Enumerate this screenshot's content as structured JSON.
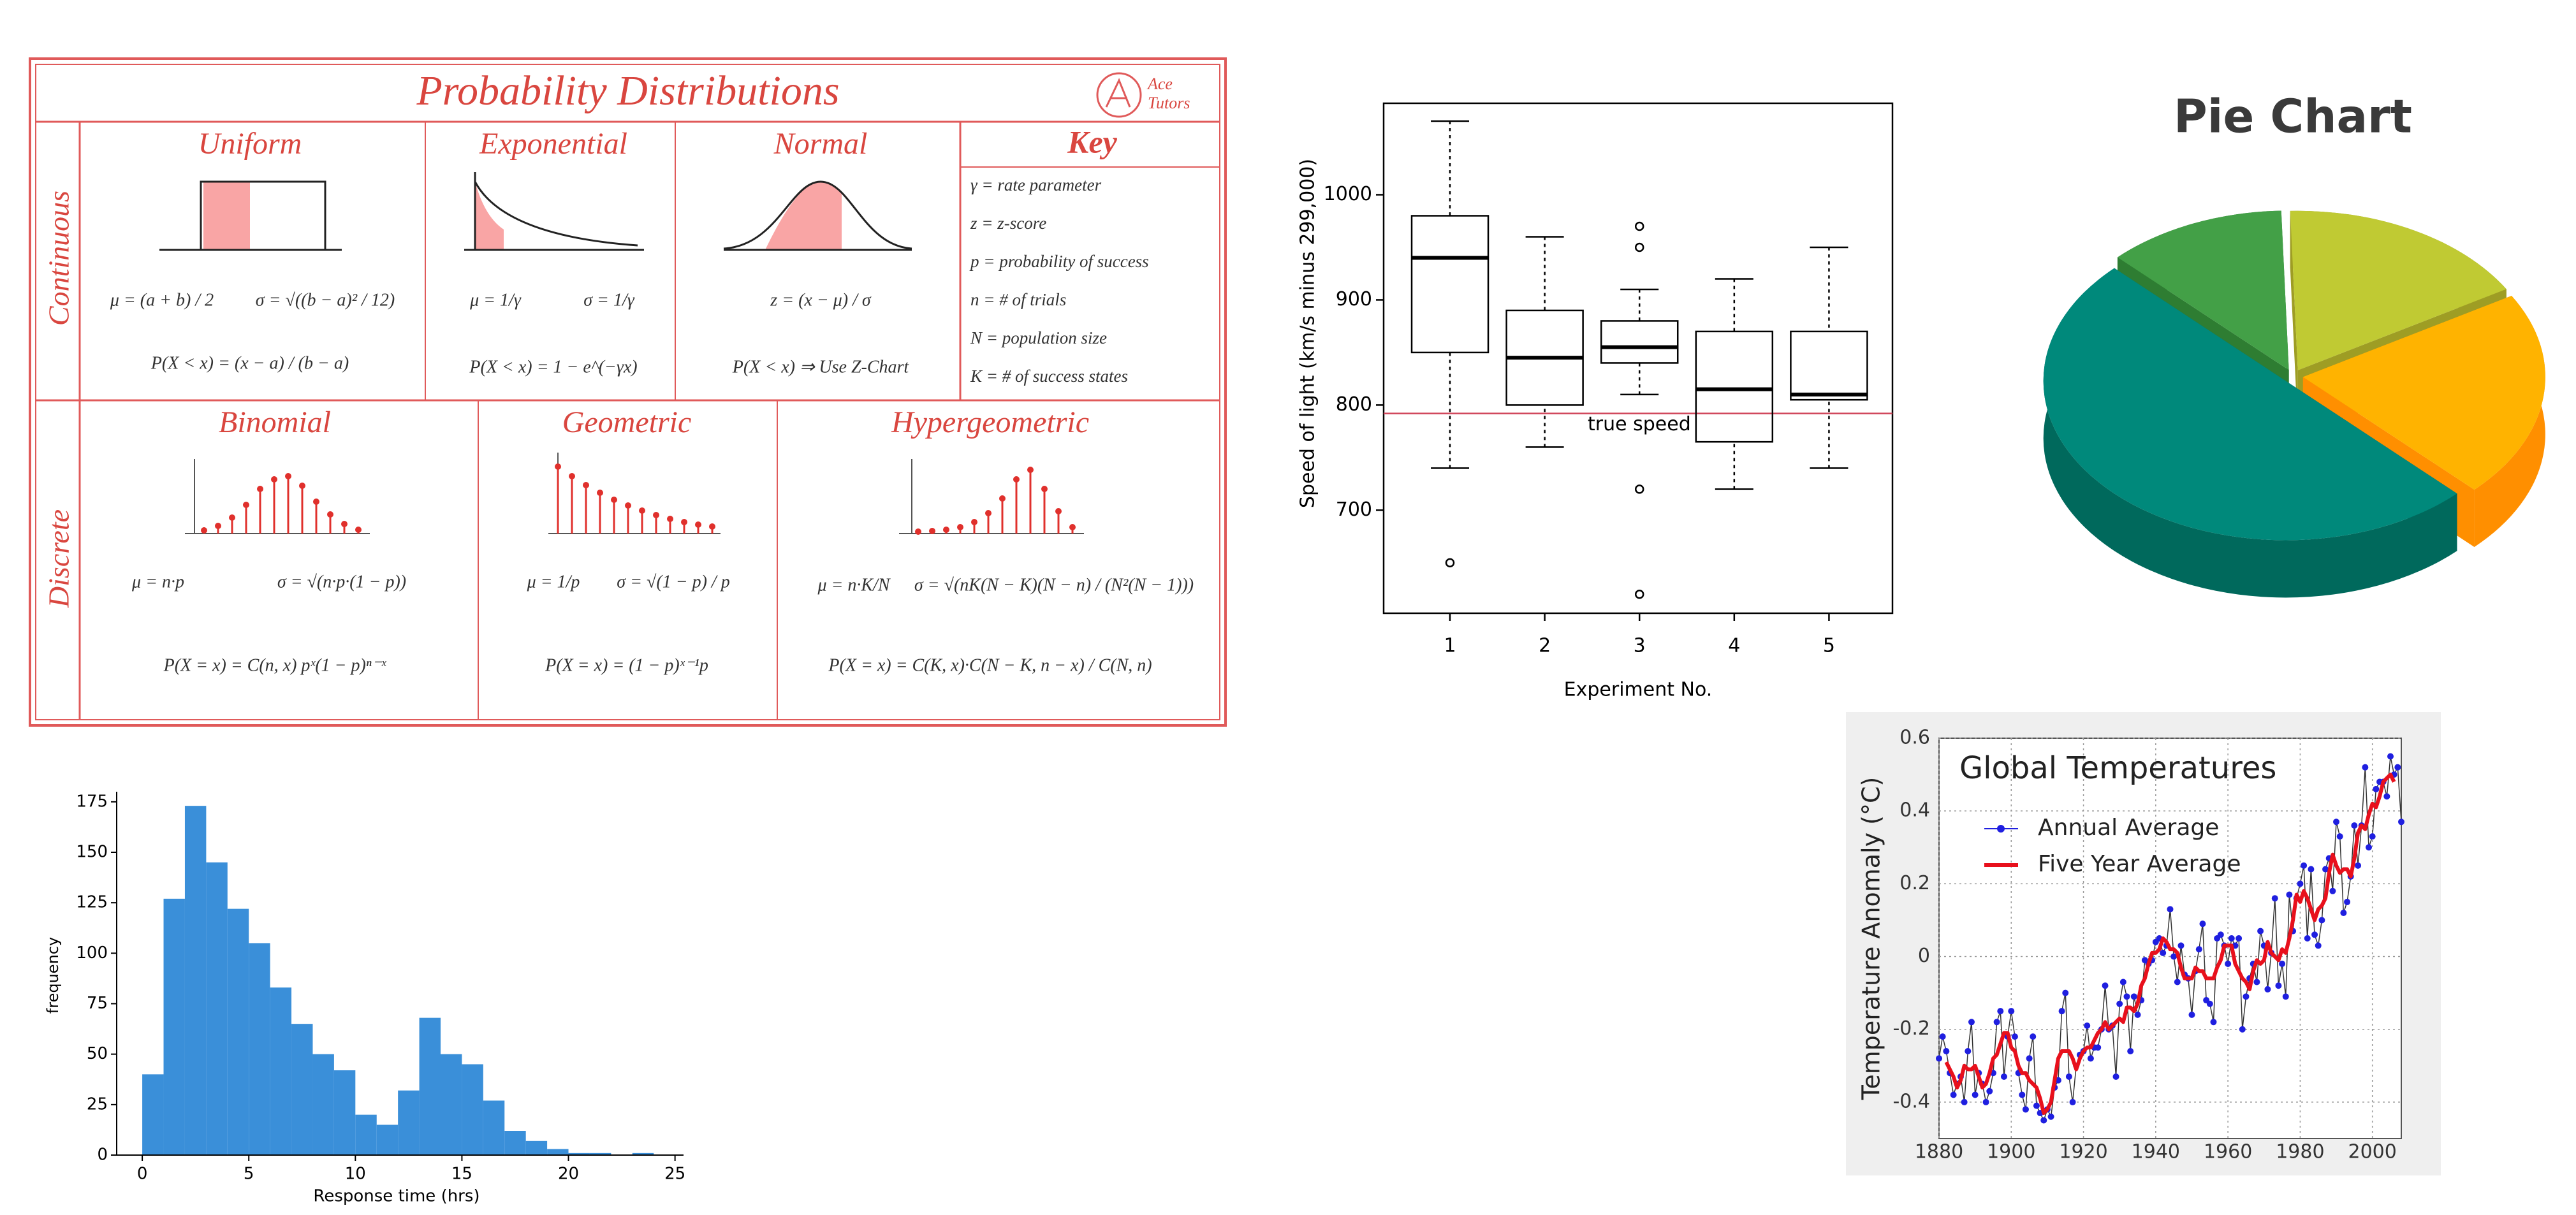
{
  "probability_sheet": {
    "title": "Probability Distributions",
    "brand": [
      "Ace",
      "Tutors"
    ],
    "sections": [
      "Continuous",
      "Discrete"
    ],
    "distributions": [
      {
        "name": "Uniform",
        "formulas": [
          "μ = (a + b) / 2",
          "σ = √((b − a)² / 12)",
          "P(X < x) = (x − a) / (b − a)"
        ]
      },
      {
        "name": "Exponential",
        "formulas": [
          "μ = 1/γ",
          "σ = 1/γ",
          "P(X < x) = 1 − e^(−γx)"
        ]
      },
      {
        "name": "Normal",
        "formulas": [
          "z = (x − μ) / σ",
          "P(X < x) ⇒ Use Z-Chart"
        ]
      },
      {
        "name": "Binomial",
        "formulas": [
          "μ = n·p",
          "σ = √(n·p·(1 − p))",
          "P(X = x) = C(n, x) pˣ(1 − p)ⁿ⁻ˣ"
        ]
      },
      {
        "name": "Geometric",
        "formulas": [
          "μ = 1/p",
          "σ = √(1 − p) / p",
          "P(X = x) = (1 − p)ˣ⁻¹p"
        ]
      },
      {
        "name": "Hypergeometric",
        "formulas": [
          "μ = n·K/N",
          "σ = √(nK(N − K)(N − n) / (N²(N − 1)))",
          "P(X = x) = C(K, x)·C(N − K, n − x) / C(N, n)"
        ]
      }
    ],
    "key": {
      "title": "Key",
      "items": [
        "γ = rate parameter",
        "z = z-score",
        "p = probability of success",
        "n = # of trials",
        "N = population size",
        "K = # of success states"
      ]
    }
  },
  "chart_data": [
    {
      "type": "box",
      "x_label": "Experiment No.",
      "y_label": "Speed of light (km/s minus 299,000)",
      "x": [
        1,
        2,
        3,
        4,
        5
      ],
      "xlim": [
        0.3,
        5.67
      ],
      "xticks": [
        1,
        2,
        3,
        4,
        5
      ],
      "ylim": [
        602,
        1087
      ],
      "yticks": [
        700,
        800,
        900,
        1000
      ],
      "boxes": [
        {
          "whisker_low": 740,
          "q1": 850,
          "median": 940,
          "q3": 980,
          "whisker_high": 1070,
          "outliers": [
            650
          ]
        },
        {
          "whisker_low": 760,
          "q1": 800,
          "median": 845,
          "q3": 890,
          "whisker_high": 960,
          "outliers": []
        },
        {
          "whisker_low": 810,
          "q1": 840,
          "median": 855,
          "q3": 880,
          "whisker_high": 910,
          "outliers": [
            620,
            720,
            950,
            970
          ]
        },
        {
          "whisker_low": 720,
          "q1": 765,
          "median": 815,
          "q3": 870,
          "whisker_high": 920,
          "outliers": []
        },
        {
          "whisker_low": 740,
          "q1": 805,
          "median": 810,
          "q3": 870,
          "whisker_high": 950,
          "outliers": []
        }
      ],
      "reference_line": {
        "value": 792,
        "label": "true speed",
        "color": "#d0455a"
      }
    },
    {
      "type": "pie",
      "title": "Pie Chart",
      "values": [
        12,
        17,
        21,
        50
      ],
      "colors": [
        "#43a047",
        "#c0ca33",
        "#ffb300",
        "#00897b"
      ],
      "side_colors": [
        "#2e7d32",
        "#9e9d24",
        "#ff8f00",
        "#00695c"
      ]
    },
    {
      "type": "histogram",
      "x_label": "Response time (hrs)",
      "y_label": "frequency",
      "bins": [
        0,
        1,
        2,
        3,
        4,
        5,
        6,
        7,
        8,
        9,
        10,
        11,
        12,
        13,
        14,
        15,
        16,
        17,
        18,
        19,
        20,
        21,
        22,
        23,
        24,
        25
      ],
      "counts": [
        40,
        127,
        173,
        145,
        122,
        105,
        83,
        65,
        50,
        42,
        20,
        15,
        32,
        68,
        50,
        45,
        27,
        12,
        7,
        3,
        1,
        1,
        0,
        1,
        0
      ],
      "color": "#3a8fd9",
      "xlim": [
        -1.2,
        25.4
      ],
      "xticks": [
        0,
        5,
        10,
        15,
        20,
        25
      ],
      "ylim": [
        0,
        180
      ],
      "yticks": [
        0,
        25,
        50,
        75,
        100,
        125,
        150,
        175
      ]
    },
    {
      "type": "line",
      "title": "Global Temperatures",
      "y_label": "Temperature Anomaly (°C)",
      "grid": true,
      "x": [
        1880,
        1881,
        1882,
        1883,
        1884,
        1885,
        1886,
        1887,
        1888,
        1889,
        1890,
        1891,
        1892,
        1893,
        1894,
        1895,
        1896,
        1897,
        1898,
        1899,
        1900,
        1901,
        1902,
        1903,
        1904,
        1905,
        1906,
        1907,
        1908,
        1909,
        1910,
        1911,
        1912,
        1913,
        1914,
        1915,
        1916,
        1917,
        1918,
        1919,
        1920,
        1921,
        1922,
        1923,
        1924,
        1925,
        1926,
        1927,
        1928,
        1929,
        1930,
        1931,
        1932,
        1933,
        1934,
        1935,
        1936,
        1937,
        1938,
        1939,
        1940,
        1941,
        1942,
        1943,
        1944,
        1945,
        1946,
        1947,
        1948,
        1949,
        1950,
        1951,
        1952,
        1953,
        1954,
        1955,
        1956,
        1957,
        1958,
        1959,
        1960,
        1961,
        1962,
        1963,
        1964,
        1965,
        1966,
        1967,
        1968,
        1969,
        1970,
        1971,
        1972,
        1973,
        1974,
        1975,
        1976,
        1977,
        1978,
        1979,
        1980,
        1981,
        1982,
        1983,
        1984,
        1985,
        1986,
        1987,
        1988,
        1989,
        1990,
        1991,
        1992,
        1993,
        1994,
        1995,
        1996,
        1997,
        1998,
        1999,
        2000,
        2001,
        2002,
        2003,
        2004,
        2005,
        2006,
        2007,
        2008
      ],
      "xlim": [
        1880,
        2008
      ],
      "xticks": [
        1880,
        1900,
        1920,
        1940,
        1960,
        1980,
        2000
      ],
      "ylim": [
        -0.5,
        0.6
      ],
      "yticks": [
        -0.4,
        -0.2,
        0,
        0.2,
        0.4,
        0.6
      ],
      "series": [
        {
          "name": "Annual Average",
          "color": "#1f1fe0",
          "marker": true,
          "values": [
            -0.28,
            -0.22,
            -0.26,
            -0.32,
            -0.38,
            -0.35,
            -0.33,
            -0.4,
            -0.26,
            -0.18,
            -0.38,
            -0.32,
            -0.35,
            -0.4,
            -0.37,
            -0.32,
            -0.18,
            -0.15,
            -0.33,
            -0.22,
            -0.15,
            -0.22,
            -0.32,
            -0.38,
            -0.42,
            -0.28,
            -0.22,
            -0.41,
            -0.43,
            -0.45,
            -0.42,
            -0.44,
            -0.36,
            -0.34,
            -0.15,
            -0.1,
            -0.33,
            -0.4,
            -0.3,
            -0.27,
            -0.26,
            -0.19,
            -0.28,
            -0.25,
            -0.25,
            -0.2,
            -0.08,
            -0.2,
            -0.19,
            -0.33,
            -0.13,
            -0.07,
            -0.11,
            -0.26,
            -0.11,
            -0.16,
            -0.12,
            -0.01,
            -0.02,
            -0.01,
            0.04,
            0.05,
            0.01,
            0.03,
            0.13,
            0,
            -0.07,
            0.03,
            -0.05,
            -0.06,
            -0.16,
            -0.04,
            0.02,
            0.09,
            -0.12,
            -0.13,
            -0.18,
            0.05,
            0.06,
            0.03,
            -0.02,
            0.05,
            0.03,
            0.05,
            -0.2,
            -0.11,
            -0.06,
            -0.02,
            -0.07,
            0.07,
            0.03,
            -0.09,
            0.01,
            0.16,
            -0.08,
            -0.02,
            -0.11,
            0.17,
            0.07,
            0.16,
            0.2,
            0.25,
            0.05,
            0.24,
            0.06,
            0.03,
            0.1,
            0.24,
            0.27,
            0.18,
            0.37,
            0.33,
            0.12,
            0.15,
            0.22,
            0.36,
            0.25,
            0.36,
            0.52,
            0.3,
            0.33,
            0.46,
            0.48,
            0.48,
            0.44,
            0.55,
            0.5,
            0.52,
            0.37
          ]
        },
        {
          "name": "Five Year Average",
          "color": "#e8101c",
          "marker": false,
          "values": [
            null,
            null,
            -0.29,
            -0.31,
            -0.33,
            -0.36,
            -0.34,
            -0.3,
            -0.31,
            -0.31,
            -0.3,
            -0.33,
            -0.36,
            -0.35,
            -0.32,
            -0.28,
            -0.27,
            -0.24,
            -0.21,
            -0.21,
            -0.25,
            -0.26,
            -0.3,
            -0.32,
            -0.32,
            -0.34,
            -0.35,
            -0.36,
            -0.39,
            -0.43,
            -0.42,
            -0.4,
            -0.34,
            -0.28,
            -0.26,
            -0.26,
            -0.26,
            -0.28,
            -0.31,
            -0.28,
            -0.26,
            -0.25,
            -0.25,
            -0.23,
            -0.21,
            -0.2,
            -0.18,
            -0.2,
            -0.19,
            -0.18,
            -0.17,
            -0.18,
            -0.14,
            -0.14,
            -0.15,
            -0.13,
            -0.08,
            -0.06,
            -0.02,
            0.01,
            0.01,
            0.02,
            0.05,
            0.04,
            0.02,
            0.02,
            0.01,
            -0.03,
            -0.06,
            -0.06,
            -0.06,
            -0.03,
            -0.04,
            -0.04,
            -0.06,
            -0.06,
            -0.06,
            -0.03,
            -0.01,
            0.03,
            0.03,
            0.03,
            -0.02,
            -0.04,
            -0.06,
            -0.07,
            -0.09,
            -0.04,
            -0.01,
            -0.02,
            -0.01,
            0.04,
            0.01,
            0,
            -0.01,
            0.02,
            0.01,
            0.05,
            0.1,
            0.17,
            0.15,
            0.18,
            0.16,
            0.13,
            0.1,
            0.13,
            0.14,
            0.16,
            0.23,
            0.28,
            0.25,
            0.23,
            0.24,
            0.24,
            0.22,
            0.27,
            0.34,
            0.36,
            0.35,
            0.39,
            0.42,
            0.41,
            0.44,
            0.48,
            0.49,
            0.5,
            0.48,
            null,
            null
          ]
        }
      ]
    }
  ]
}
